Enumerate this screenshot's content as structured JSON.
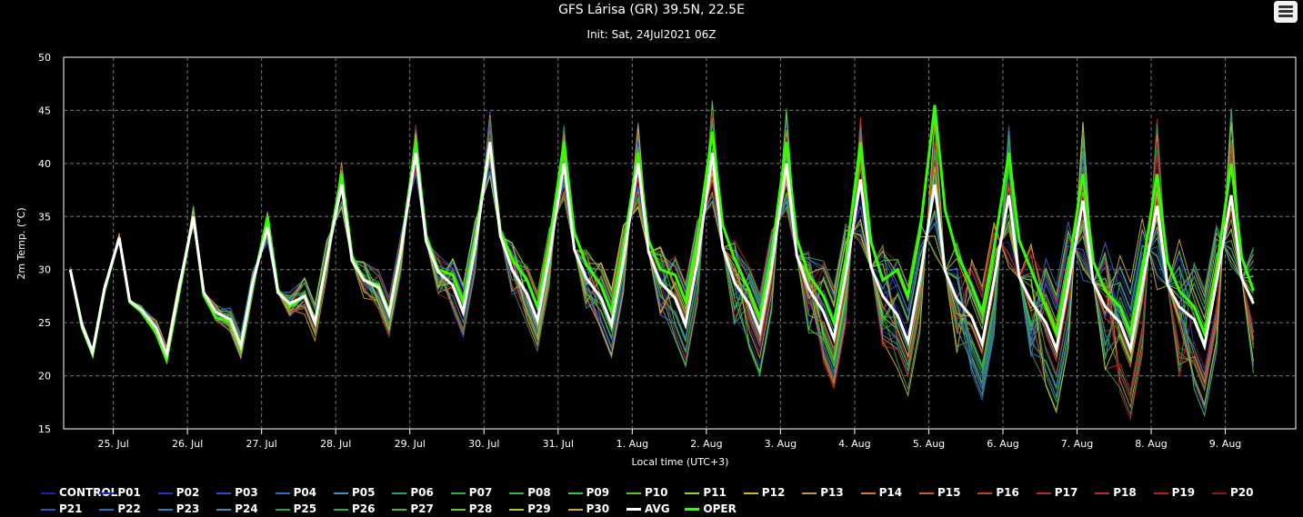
{
  "header": {
    "title": "GFS Lárisa (GR) 39.5N, 22.5E",
    "subtitle": "Init: Sat, 24Jul2021 06Z"
  },
  "menu": {
    "icon": "hamburger-menu-icon"
  },
  "chart_data": {
    "type": "line",
    "title": "GFS Lárisa (GR) 39.5N, 22.5E",
    "subtitle": "Init: Sat, 24Jul2021 06Z",
    "xlabel": "Local time (UTC+3)",
    "ylabel": "2m Temp. (°C)",
    "ylim": [
      15,
      50
    ],
    "yticks": [
      15,
      20,
      25,
      30,
      35,
      40,
      45,
      50
    ],
    "xlim_days": [
      24.83,
      41.45
    ],
    "xtick_labels": [
      "25. Jul",
      "26. Jul",
      "27. Jul",
      "28. Jul",
      "29. Jul",
      "30. Jul",
      "31. Jul",
      "1. Aug",
      "2. Aug",
      "3. Aug",
      "4. Aug",
      "5. Aug",
      "6. Aug",
      "7. Aug",
      "8. Aug",
      "9. Aug"
    ],
    "grid": true,
    "legend_position": "bottom",
    "avg_series": {
      "name": "AVG",
      "color": "#ffffff",
      "daily_max": [
        33,
        35,
        34,
        38,
        41,
        42,
        40,
        40,
        41,
        40,
        38.5,
        38,
        37,
        36.5,
        36,
        37
      ],
      "daily_min": [
        22.2,
        22,
        22.8,
        25,
        25.8,
        26,
        25.2,
        24.8,
        24.8,
        24.2,
        23.5,
        23.2,
        23,
        22.5,
        22.5,
        22.8
      ]
    },
    "oper_series": {
      "name": "OPER",
      "color": "#33ff00",
      "daily_max": [
        33,
        35,
        35,
        39,
        42,
        42,
        42,
        41,
        43,
        42,
        42,
        45.5,
        41,
        39,
        39,
        40
      ],
      "daily_min": [
        22,
        21.5,
        22.5,
        25,
        26,
        27,
        26.5,
        26,
        27,
        25.5,
        25,
        27.5,
        26,
        24,
        24,
        24
      ]
    },
    "series": [
      {
        "name": "CONTROL",
        "color": "#1f1fa8"
      },
      {
        "name": "P01",
        "color": "#1f2ab8"
      },
      {
        "name": "P02",
        "color": "#2338c0"
      },
      {
        "name": "P03",
        "color": "#2a4ec8"
      },
      {
        "name": "P04",
        "color": "#3466c8"
      },
      {
        "name": "P05",
        "color": "#3f8ec8"
      },
      {
        "name": "P06",
        "color": "#2fa069"
      },
      {
        "name": "P07",
        "color": "#2fa84a"
      },
      {
        "name": "P08",
        "color": "#33b847"
      },
      {
        "name": "P09",
        "color": "#38c83a"
      },
      {
        "name": "P10",
        "color": "#50c828"
      },
      {
        "name": "P11",
        "color": "#9ad028"
      },
      {
        "name": "P12",
        "color": "#d2b628"
      },
      {
        "name": "P13",
        "color": "#c8963a"
      },
      {
        "name": "P14",
        "color": "#d8783a"
      },
      {
        "name": "P15",
        "color": "#c85a2f"
      },
      {
        "name": "P16",
        "color": "#b8442a"
      },
      {
        "name": "P17",
        "color": "#a83028"
      },
      {
        "name": "P18",
        "color": "#c02828"
      },
      {
        "name": "P19",
        "color": "#b81f1f"
      },
      {
        "name": "P20",
        "color": "#8a1a1a"
      },
      {
        "name": "P21",
        "color": "#2a56b8"
      },
      {
        "name": "P22",
        "color": "#2e6ab8"
      },
      {
        "name": "P23",
        "color": "#3a7cc0"
      },
      {
        "name": "P24",
        "color": "#4a8ab0"
      },
      {
        "name": "P25",
        "color": "#2f9a60"
      },
      {
        "name": "P26",
        "color": "#38a850"
      },
      {
        "name": "P27",
        "color": "#4ab840"
      },
      {
        "name": "P28",
        "color": "#5ac838"
      },
      {
        "name": "P29",
        "color": "#b0c830"
      },
      {
        "name": "P30",
        "color": "#d4aa30"
      }
    ]
  }
}
